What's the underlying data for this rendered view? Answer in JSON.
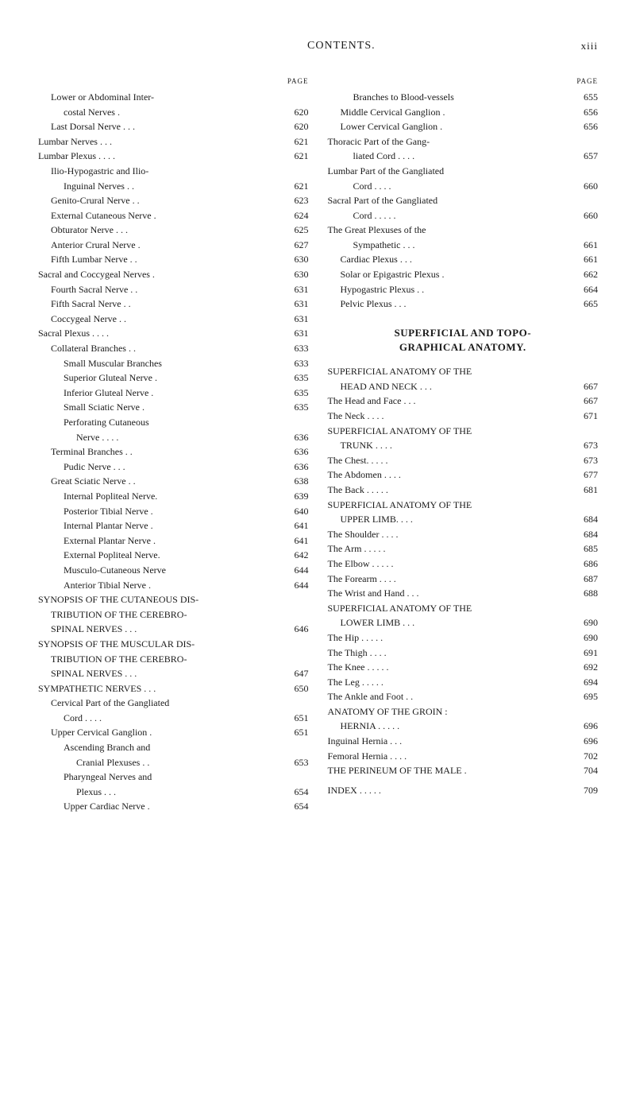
{
  "header": {
    "title": "CONTENTS.",
    "page_num": "xiii"
  },
  "page_label": "PAGE",
  "left_col": {
    "entries": [
      {
        "text": "Lower or Abdominal Inter-",
        "indent": 1
      },
      {
        "text": "costal Nerves .",
        "page": "620",
        "indent": 2
      },
      {
        "text": "Last Dorsal Nerve .    . .",
        "page": "620",
        "indent": 1
      },
      {
        "text": "Lumbar Nerves    .    .    .",
        "page": "621",
        "indent": 0
      },
      {
        "text": "Lumbar Plexus .    .    . .",
        "page": "621",
        "indent": 0
      },
      {
        "text": "Ilio-Hypogastric  and  Ilio-",
        "indent": 1
      },
      {
        "text": "Inguinal Nerves    .    .",
        "page": "621",
        "indent": 2
      },
      {
        "text": "Genito-Crural Nerve    . .",
        "page": "623",
        "indent": 1
      },
      {
        "text": "External Cutaneous Nerve .",
        "page": "624",
        "indent": 1
      },
      {
        "text": "Obturator Nerve   .    . .",
        "page": "625",
        "indent": 1
      },
      {
        "text": "Anterior Crural Nerve    .",
        "page": "627",
        "indent": 1
      },
      {
        "text": "Fifth Lumbar Nerve    . .",
        "page": "630",
        "indent": 1
      },
      {
        "text": "Sacral and Coccygeal Nerves .",
        "page": "630",
        "indent": 0
      },
      {
        "text": "Fourth Sacral Nerve .    .",
        "page": "631",
        "indent": 1
      },
      {
        "text": "Fifth Sacral Nerve    . .",
        "page": "631",
        "indent": 1
      },
      {
        "text": "Coccygeal Nerve    .    .",
        "page": "631",
        "indent": 1
      },
      {
        "text": "Sacral Plexus  .    .    . .",
        "page": "631",
        "indent": 0
      },
      {
        "text": "Collateral Branches  .    .",
        "page": "633",
        "indent": 1
      },
      {
        "text": "Small Muscular Branches",
        "page": "633",
        "indent": 2
      },
      {
        "text": "Superior Gluteal Nerve  .",
        "page": "635",
        "indent": 2
      },
      {
        "text": "Inferior Gluteal Nerve  .",
        "page": "635",
        "indent": 2
      },
      {
        "text": "Small Sciatic Nerve    .",
        "page": "635",
        "indent": 2
      },
      {
        "text": "Perforating     Cutaneous",
        "indent": 2
      },
      {
        "text": "Nerve .    .    .    .",
        "page": "636",
        "indent": 3
      },
      {
        "text": "Terminal Branches    . .",
        "page": "636",
        "indent": 1
      },
      {
        "text": "Pudic Nerve  .    .    .",
        "page": "636",
        "indent": 2
      },
      {
        "text": "Great Sciatic Nerve    . .",
        "page": "638",
        "indent": 1
      },
      {
        "text": "Internal Popliteal Nerve.",
        "page": "639",
        "indent": 2
      },
      {
        "text": "Posterior Tibial Nerve  .",
        "page": "640",
        "indent": 2
      },
      {
        "text": "Internal Plantar Nerve  .",
        "page": "641",
        "indent": 2
      },
      {
        "text": "External Plantar Nerve  .",
        "page": "641",
        "indent": 2
      },
      {
        "text": "External Popliteal Nerve.",
        "page": "642",
        "indent": 2
      },
      {
        "text": "Musculo-Cutaneous Nerve",
        "page": "644",
        "indent": 2
      },
      {
        "text": "Anterior Tibial Nerve  .",
        "page": "644",
        "indent": 2
      }
    ],
    "synopsis_entries": [
      {
        "text": "SYNOPSIS OF THE CUTANEOUS DIS-",
        "smallcaps": true
      },
      {
        "text": "TRIBUTION OF THE CEREBRO-",
        "indent": 1,
        "smallcaps": true
      },
      {
        "text": "SPINAL NERVES .    . .",
        "page": "646",
        "indent": 1,
        "smallcaps": true
      },
      {
        "text": "SYNOPSIS OF THE MUSCULAR DIS-",
        "smallcaps": true
      },
      {
        "text": "TRIBUTION OF THE CEREBRO-",
        "indent": 1,
        "smallcaps": true
      },
      {
        "text": "SPINAL NERVES .    .    .",
        "page": "647",
        "indent": 1,
        "smallcaps": true
      },
      {
        "text": "SYMPATHETIC NERVES    .    . .",
        "page": "650",
        "smallcaps": true
      },
      {
        "text": "Cervical Part of the Gangliated",
        "indent": 1
      },
      {
        "text": "Cord    .    .    .    .",
        "page": "651",
        "indent": 2
      },
      {
        "text": "Upper Cervical Ganglion  .",
        "page": "651",
        "indent": 1
      },
      {
        "text": "Ascending   Branch   and",
        "indent": 2
      },
      {
        "text": "Cranial Plexuses    . .",
        "page": "653",
        "indent": 3
      },
      {
        "text": "Pharyngeal  Nerves  and",
        "indent": 2
      },
      {
        "text": "Plexus    .    .    .",
        "page": "654",
        "indent": 3
      },
      {
        "text": "Upper Cardiac Nerve    .",
        "page": "654",
        "indent": 2
      }
    ]
  },
  "right_col": {
    "entries": [
      {
        "text": "Branches to Blood-vessels",
        "page": "655",
        "indent": 2
      },
      {
        "text": "Middle Cervical Ganglion  .",
        "page": "656",
        "indent": 1
      },
      {
        "text": "Lower Cervical Ganglion  .",
        "page": "656",
        "indent": 1
      },
      {
        "text": "Thoracic  Part  of  the  Gang-",
        "indent": 0
      },
      {
        "text": "liated Cord .    .    . .",
        "page": "657",
        "indent": 2
      },
      {
        "text": "Lumbar Part of the Gangliated",
        "indent": 0
      },
      {
        "text": "Cord    .    .    .    .",
        "page": "660",
        "indent": 2
      },
      {
        "text": "Sacral Part of the Gangliated",
        "indent": 0
      },
      {
        "text": "Cord .    .    .    . .",
        "page": "660",
        "indent": 2
      },
      {
        "text": "The  Great  Plexuses  of  the",
        "indent": 0
      },
      {
        "text": "Sympathetic  .    .    .",
        "page": "661",
        "indent": 2
      },
      {
        "text": "Cardiac Plexus    .    . .",
        "page": "661",
        "indent": 1
      },
      {
        "text": "Solar or Epigastric Plexus .",
        "page": "662",
        "indent": 1
      },
      {
        "text": "Hypogastric Plexus    . .",
        "page": "664",
        "indent": 1
      },
      {
        "text": "Pelvic Plexus    .    .    .",
        "page": "665",
        "indent": 1
      }
    ],
    "section_header": "SUPERFICIAL AND TOPO-\nGRAPHICAL ANATOMY.",
    "anatomy_entries": [
      {
        "text": "SUPERFICIAL  ANATOMY  OF  THE",
        "smallcaps": true
      },
      {
        "text": "HEAD AND NECK   .   . .",
        "page": "667",
        "indent": 1,
        "smallcaps": true
      },
      {
        "text": "The Head and Face .    . .",
        "page": "667",
        "indent": 0
      },
      {
        "text": "The Neck    .    .    . .",
        "page": "671",
        "indent": 0
      },
      {
        "text": "SUPERFICIAL  ANATOMY  OF  THE",
        "smallcaps": true
      },
      {
        "text": "TRUNK    .    .    . .",
        "page": "673",
        "indent": 1,
        "smallcaps": true
      },
      {
        "text": "The Chest.    .    .    . .",
        "page": "673",
        "indent": 0
      },
      {
        "text": "The Abdomen    .    .    . .",
        "page": "677",
        "indent": 0
      },
      {
        "text": "The Back .    .    .    . .",
        "page": "681",
        "indent": 0
      },
      {
        "text": "SUPERFICIAL  ANATOMY  OF  THE",
        "smallcaps": true
      },
      {
        "text": "UPPER LIMB.    .    .    .",
        "page": "684",
        "indent": 1,
        "smallcaps": true
      },
      {
        "text": "The Shoulder    .    .    . .",
        "page": "684",
        "indent": 0
      },
      {
        "text": "The Arm .    .    .    .    .",
        "page": "685",
        "indent": 0
      },
      {
        "text": "The Elbow  .    .    .    . .",
        "page": "686",
        "indent": 0
      },
      {
        "text": "The Forearm  .    .    . .",
        "page": "687",
        "indent": 0
      },
      {
        "text": "The Wrist and Hand  .    . .",
        "page": "688",
        "indent": 0
      },
      {
        "text": "SUPERFICIAL  ANATOMY  OF  THE",
        "smallcaps": true
      },
      {
        "text": "LOWER LIMB    .    .    .",
        "page": "690",
        "indent": 1,
        "smallcaps": true
      },
      {
        "text": "The Hip    .    .    .    . .",
        "page": "690",
        "indent": 0
      },
      {
        "text": "The Thigh    .    .    . .",
        "page": "691",
        "indent": 0
      },
      {
        "text": "The Knee    .    .    .    . .",
        "page": "692",
        "indent": 0
      },
      {
        "text": "The Leg  .    .    .    .    .",
        "page": "694",
        "indent": 0
      },
      {
        "text": "The Ankle and Foot    . .",
        "page": "695",
        "indent": 0
      },
      {
        "text": "ANATOMY   OF   THE   GROIN :",
        "smallcaps": true
      },
      {
        "text": "HERNIA  .    .    .    . .",
        "page": "696",
        "indent": 1,
        "smallcaps": true
      },
      {
        "text": "Inguinal Hernia    .    . .",
        "page": "696",
        "indent": 0
      },
      {
        "text": "Femoral Hernia  .    .    . .",
        "page": "702",
        "indent": 0
      },
      {
        "text": "THE PERINEUM OF THE MALE  .",
        "page": "704",
        "smallcaps": true
      },
      {
        "text": "",
        "spacer": true
      },
      {
        "text": "INDEX    .    .    .    .    .",
        "page": "709"
      }
    ]
  }
}
